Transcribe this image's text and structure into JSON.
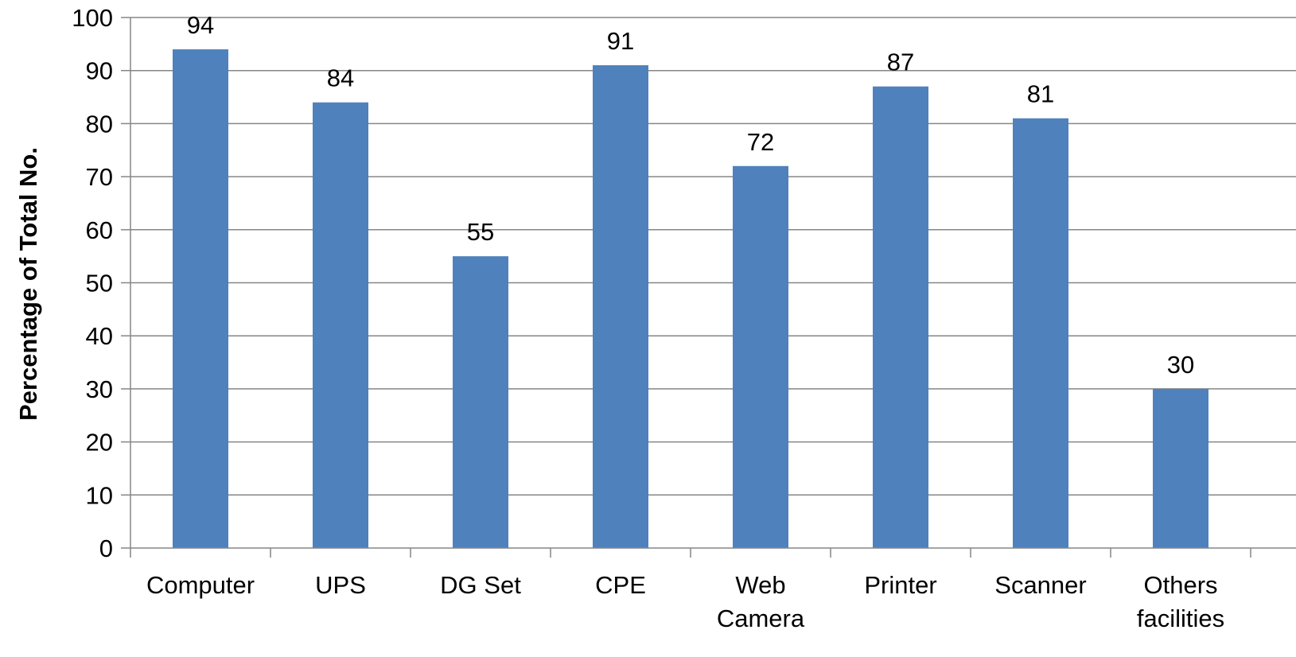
{
  "chart_data": {
    "type": "bar",
    "title": "",
    "xlabel": "",
    "ylabel": "Percentage of Total No.",
    "categories": [
      "Computer",
      "UPS",
      "DG Set",
      "CPE",
      "Web Camera",
      "Printer",
      "Scanner",
      "Others facilities"
    ],
    "category_lines": [
      [
        "Computer"
      ],
      [
        "UPS"
      ],
      [
        "DG Set"
      ],
      [
        "CPE"
      ],
      [
        "Web",
        "Camera"
      ],
      [
        "Printer"
      ],
      [
        "Scanner"
      ],
      [
        "Others",
        "facilities"
      ]
    ],
    "values": [
      94,
      84,
      55,
      91,
      72,
      87,
      81,
      30
    ],
    "ylim": [
      0,
      100
    ],
    "yticks": [
      0,
      10,
      20,
      30,
      40,
      50,
      60,
      70,
      80,
      90,
      100
    ],
    "grid": true,
    "legend": "none",
    "bar_color": "#4F81BD",
    "grid_color": "#868686",
    "data_labels": true
  }
}
